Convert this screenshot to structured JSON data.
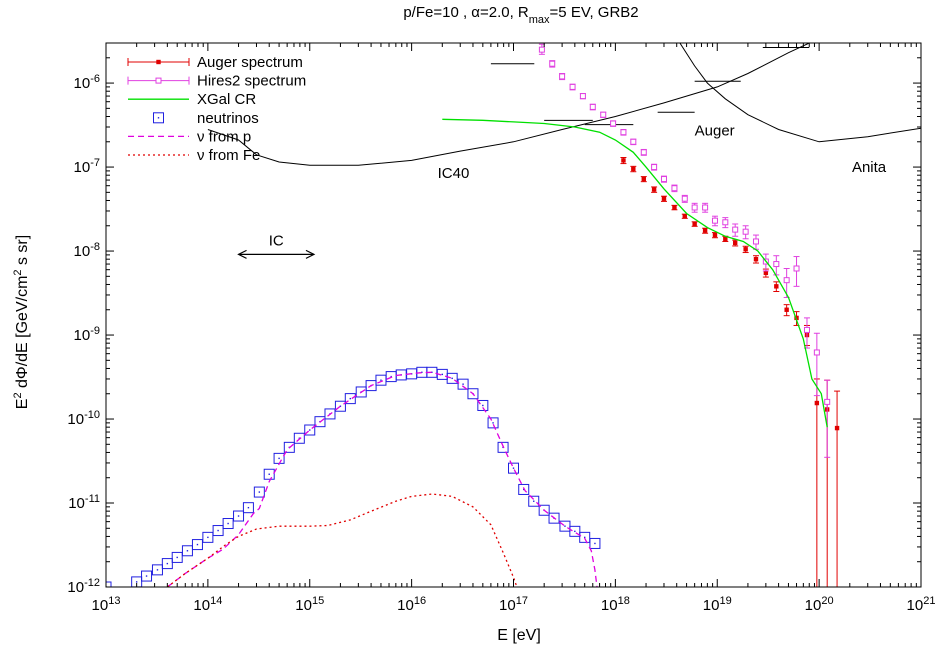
{
  "chart_data": {
    "type": "scatter",
    "title": "p/Fe=10 , α=2.0, R",
    "title_sub": "max",
    "title_tail": "=5 EV, GRB2",
    "xlabel": "E [eV]",
    "ylabel_pre": "E",
    "ylabel_sup": "2",
    "ylabel_mid": " dΦ/dE [GeV/cm",
    "ylabel_sup2": "2",
    "ylabel_post": " s sr]",
    "x_scale": "log",
    "y_scale": "log",
    "xlim": [
      10000000000000.0,
      1e+21
    ],
    "ylim": [
      1e-12,
      3e-06
    ],
    "grid": false,
    "legend_position": "top-left",
    "x_ticks": [
      {
        "base": "10",
        "exp": "13",
        "value": 10000000000000.0
      },
      {
        "base": "10",
        "exp": "14",
        "value": 100000000000000.0
      },
      {
        "base": "10",
        "exp": "15",
        "value": 1000000000000000.0
      },
      {
        "base": "10",
        "exp": "16",
        "value": 1e+16
      },
      {
        "base": "10",
        "exp": "17",
        "value": 1e+17
      },
      {
        "base": "10",
        "exp": "18",
        "value": 1e+18
      },
      {
        "base": "10",
        "exp": "19",
        "value": 1e+19
      },
      {
        "base": "10",
        "exp": "20",
        "value": 1e+20
      },
      {
        "base": "10",
        "exp": "21",
        "value": 1e+21
      }
    ],
    "y_ticks": [
      {
        "base": "10",
        "exp": "-12",
        "value": 1e-12
      },
      {
        "base": "10",
        "exp": "-11",
        "value": 1e-11
      },
      {
        "base": "10",
        "exp": "-10",
        "value": 1e-10
      },
      {
        "base": "10",
        "exp": "-9",
        "value": 1e-09
      },
      {
        "base": "10",
        "exp": "-8",
        "value": 1e-08
      },
      {
        "base": "10",
        "exp": "-7",
        "value": 1e-07
      },
      {
        "base": "10",
        "exp": "-6",
        "value": 1e-06
      }
    ],
    "series": [
      {
        "name": "Auger spectrum",
        "kind": "errorbar-points",
        "color": "#e00000",
        "points": [
          [
            1.2e+18,
            1.2e-07,
            1.1e-07,
            1.3e-07
          ],
          [
            1.5e+18,
            9.5e-08,
            8.8e-08,
            1.02e-07
          ],
          [
            1.9e+18,
            7.2e-08,
            6.7e-08,
            7.7e-08
          ],
          [
            2.4e+18,
            5.4e-08,
            5e-08,
            5.8e-08
          ],
          [
            3e+18,
            4.2e-08,
            3.9e-08,
            4.5e-08
          ],
          [
            3.8e+18,
            3.3e-08,
            3.1e-08,
            3.5e-08
          ],
          [
            4.8e+18,
            2.6e-08,
            2.45e-08,
            2.75e-08
          ],
          [
            6e+18,
            2.1e-08,
            1.97e-08,
            2.23e-08
          ],
          [
            7.6e+18,
            1.75e-08,
            1.63e-08,
            1.87e-08
          ],
          [
            9.5e+18,
            1.55e-08,
            1.44e-08,
            1.66e-08
          ],
          [
            1.2e+19,
            1.4e-08,
            1.3e-08,
            1.5e-08
          ],
          [
            1.5e+19,
            1.25e-08,
            1.15e-08,
            1.35e-08
          ],
          [
            1.9e+19,
            1.05e-08,
            9.6e-09,
            1.14e-08
          ],
          [
            2.4e+19,
            8e-09,
            7.2e-09,
            8.8e-09
          ],
          [
            3e+19,
            5.5e-09,
            4.9e-09,
            6.1e-09
          ],
          [
            3.8e+19,
            3.8e-09,
            3.3e-09,
            4.3e-09
          ],
          [
            4.8e+19,
            2e-09,
            1.7e-09,
            2.3e-09
          ],
          [
            6e+19,
            1.6e-09,
            1.3e-09,
            1.9e-09
          ],
          [
            7.6e+19,
            1e-09,
            7.5e-10,
            1.3e-09
          ],
          [
            9.5e+19,
            1.55e-10,
            1e-12,
            3e-10
          ],
          [
            1.2e+20,
            1.3e-10,
            1e-12,
            2.9e-10
          ],
          [
            1.5e+20,
            7.8e-11,
            1e-12,
            2.15e-10
          ]
        ]
      },
      {
        "name": "Hires2 spectrum",
        "kind": "errorbar-points",
        "color": "#e040e0",
        "points": [
          [
            1.9e+17,
            2.5e-06,
            2.2e-06,
            2.9e-06
          ],
          [
            2.4e+17,
            1.7e-06,
            1.55e-06,
            1.85e-06
          ],
          [
            3e+17,
            1.2e-06,
            1.1e-06,
            1.3e-06
          ],
          [
            3.8e+17,
            9e-07,
            8.3e-07,
            9.7e-07
          ],
          [
            4.8e+17,
            7e-07,
            6.5e-07,
            7.5e-07
          ],
          [
            6e+17,
            5.2e-07,
            4.8e-07,
            5.6e-07
          ],
          [
            7.6e+17,
            4.2e-07,
            3.9e-07,
            4.5e-07
          ],
          [
            9.5e+17,
            3.3e-07,
            3.05e-07,
            3.55e-07
          ],
          [
            1.2e+18,
            2.6e-07,
            2.4e-07,
            2.8e-07
          ],
          [
            1.5e+18,
            2e-07,
            1.85e-07,
            2.15e-07
          ],
          [
            1.9e+18,
            1.5e-07,
            1.38e-07,
            1.62e-07
          ],
          [
            2.4e+18,
            1e-07,
            9.2e-08,
            1.08e-07
          ],
          [
            3e+18,
            7.2e-08,
            6.6e-08,
            7.8e-08
          ],
          [
            3.8e+18,
            5.6e-08,
            5.1e-08,
            6.1e-08
          ],
          [
            4.8e+18,
            4.2e-08,
            3.8e-08,
            4.6e-08
          ],
          [
            6e+18,
            3.3e-08,
            2.9e-08,
            3.7e-08
          ],
          [
            7.6e+18,
            3.3e-08,
            2.9e-08,
            3.7e-08
          ],
          [
            9.5e+18,
            2.3e-08,
            2e-08,
            2.6e-08
          ],
          [
            1.2e+19,
            2.2e-08,
            1.9e-08,
            2.5e-08
          ],
          [
            1.5e+19,
            1.8e-08,
            1.5e-08,
            2.1e-08
          ],
          [
            1.9e+19,
            1.7e-08,
            1.4e-08,
            2e-08
          ],
          [
            2.4e+19,
            1.3e-08,
            1.05e-08,
            1.55e-08
          ],
          [
            3e+19,
            7.5e-09,
            5.8e-09,
            9.2e-09
          ],
          [
            3.8e+19,
            7e-09,
            5.2e-09,
            8.8e-09
          ],
          [
            4.8e+19,
            4.5e-09,
            2.8e-09,
            6.2e-09
          ],
          [
            6e+19,
            6.2e-09,
            3.8e-09,
            8.6e-09
          ],
          [
            7.6e+19,
            1.15e-09,
            7e-10,
            1.6e-09
          ],
          [
            9.5e+19,
            6.2e-10,
            1.9e-10,
            1.05e-09
          ],
          [
            1.2e+20,
            1.6e-10,
            3.5e-11,
            2.9e-10
          ]
        ]
      },
      {
        "name": "XGal CR",
        "kind": "line",
        "color": "#00e000",
        "dash": "",
        "points": [
          [
            2e+16,
            3.7e-07
          ],
          [
            5e+16,
            3.6e-07
          ],
          [
            1e+17,
            3.45e-07
          ],
          [
            2e+17,
            3.3e-07
          ],
          [
            4e+17,
            3e-07
          ],
          [
            7e+17,
            2.6e-07
          ],
          [
            1e+18,
            2.1e-07
          ],
          [
            1.5e+18,
            1.5e-07
          ],
          [
            2e+18,
            1e-07
          ],
          [
            3e+18,
            5.5e-08
          ],
          [
            5e+18,
            2.8e-08
          ],
          [
            8e+18,
            1.9e-08
          ],
          [
            1.2e+19,
            1.5e-08
          ],
          [
            1.8e+19,
            1.3e-08
          ],
          [
            2.5e+19,
            1e-08
          ],
          [
            3.5e+19,
            6e-09
          ],
          [
            5e+19,
            2.8e-09
          ],
          [
            7e+19,
            9e-10
          ],
          [
            8.5e+19,
            3e-10
          ],
          [
            1.05e+20,
            2e-10
          ],
          [
            1.2e+20,
            8e-11
          ]
        ]
      },
      {
        "name": "neutrinos",
        "kind": "squares",
        "color": "#2020e0",
        "points": [
          [
            10000000000000.0,
            1e-12
          ],
          [
            16000000000000.0,
            7e-13
          ],
          [
            20000000000000.0,
            1.15e-12
          ],
          [
            25000000000000.0,
            1.35e-12
          ],
          [
            32000000000000.0,
            1.6e-12
          ],
          [
            40000000000000.0,
            1.9e-12
          ],
          [
            50000000000000.0,
            2.25e-12
          ],
          [
            63000000000000.0,
            2.7e-12
          ],
          [
            79000000000000.0,
            3.2e-12
          ],
          [
            100000000000000.0,
            3.9e-12
          ],
          [
            126000000000000.0,
            4.7e-12
          ],
          [
            158000000000000.0,
            5.7e-12
          ],
          [
            200000000000000.0,
            7e-12
          ],
          [
            250000000000000.0,
            8.8e-12
          ],
          [
            320000000000000.0,
            1.35e-11
          ],
          [
            400000000000000.0,
            2.2e-11
          ],
          [
            500000000000000.0,
            3.4e-11
          ],
          [
            630000000000000.0,
            4.6e-11
          ],
          [
            790000000000000.0,
            5.9e-11
          ],
          [
            1000000000000000.0,
            7.4e-11
          ],
          [
            1260000000000000.0,
            9.3e-11
          ],
          [
            1580000000000000.0,
            1.15e-10
          ],
          [
            2000000000000000.0,
            1.42e-10
          ],
          [
            2500000000000000.0,
            1.75e-10
          ],
          [
            3200000000000000.0,
            2.1e-10
          ],
          [
            4000000000000000.0,
            2.5e-10
          ],
          [
            5000000000000000.0,
            2.9e-10
          ],
          [
            6300000000000000.0,
            3.2e-10
          ],
          [
            7900000000000000.0,
            3.35e-10
          ],
          [
            1e+16,
            3.45e-10
          ],
          [
            1.26e+16,
            3.6e-10
          ],
          [
            1.58e+16,
            3.6e-10
          ],
          [
            2e+16,
            3.4e-10
          ],
          [
            2.5e+16,
            3.05e-10
          ],
          [
            3.2e+16,
            2.6e-10
          ],
          [
            4e+16,
            2e-10
          ],
          [
            5e+16,
            1.45e-10
          ],
          [
            6.3e+16,
            9e-11
          ],
          [
            7.9e+16,
            4.6e-11
          ],
          [
            1e+17,
            2.6e-11
          ],
          [
            1.26e+17,
            1.45e-11
          ],
          [
            1.58e+17,
            1.05e-11
          ],
          [
            2e+17,
            8.2e-12
          ],
          [
            2.5e+17,
            6.6e-12
          ],
          [
            3.2e+17,
            5.3e-12
          ],
          [
            4e+17,
            4.6e-12
          ],
          [
            5e+17,
            3.9e-12
          ],
          [
            6.3e+17,
            3.3e-12
          ]
        ]
      },
      {
        "name": "ν from p",
        "kind": "line",
        "color": "#e000e0",
        "dash": "6,4",
        "points": [
          [
            40000000000000.0,
            1e-12
          ],
          [
            60000000000000.0,
            1.45e-12
          ],
          [
            100000000000000.0,
            2.2e-12
          ],
          [
            140000000000000.0,
            2.8e-12
          ],
          [
            200000000000000.0,
            4.2e-12
          ],
          [
            280000000000000.0,
            7.5e-12
          ],
          [
            320000000000000.0,
            8.6e-12
          ],
          [
            400000000000000.0,
            1.8e-11
          ],
          [
            600000000000000.0,
            4.3e-11
          ],
          [
            1000000000000000.0,
            7.4e-11
          ],
          [
            2000000000000000.0,
            1.42e-10
          ],
          [
            4000000000000000.0,
            2.5e-10
          ],
          [
            7000000000000000.0,
            3.3e-10
          ],
          [
            1.2e+16,
            3.55e-10
          ],
          [
            1.6e+16,
            3.6e-10
          ],
          [
            2.5e+16,
            3.05e-10
          ],
          [
            4e+16,
            2e-10
          ],
          [
            6e+16,
            1e-10
          ],
          [
            8e+16,
            4.6e-11
          ],
          [
            1e+17,
            2.6e-11
          ],
          [
            1.3e+17,
            1.4e-11
          ],
          [
            2e+17,
            8.2e-12
          ],
          [
            3.2e+17,
            5.3e-12
          ],
          [
            5e+17,
            3.8e-12
          ],
          [
            5.8e+17,
            2.7e-12
          ],
          [
            6.3e+17,
            1.6e-12
          ],
          [
            6.6e+17,
            1e-12
          ]
        ]
      },
      {
        "name": "ν from Fe",
        "kind": "line",
        "color": "#e00000",
        "dash": "2,3",
        "points": [
          [
            40000000000000.0,
            1e-12
          ],
          [
            60000000000000.0,
            1.45e-12
          ],
          [
            100000000000000.0,
            2.2e-12
          ],
          [
            150000000000000.0,
            3.2e-12
          ],
          [
            200000000000000.0,
            4e-12
          ],
          [
            300000000000000.0,
            4.9e-12
          ],
          [
            500000000000000.0,
            5.3e-12
          ],
          [
            1000000000000000.0,
            5.3e-12
          ],
          [
            1500000000000000.0,
            5.4e-12
          ],
          [
            2500000000000000.0,
            6.3e-12
          ],
          [
            4000000000000000.0,
            8e-12
          ],
          [
            7000000000000000.0,
            1.05e-11
          ],
          [
            1e+16,
            1.2e-11
          ],
          [
            1.6e+16,
            1.28e-11
          ],
          [
            2.5e+16,
            1.2e-11
          ],
          [
            4e+16,
            9e-12
          ],
          [
            6e+16,
            5.5e-12
          ],
          [
            8e+16,
            2.5e-12
          ],
          [
            1e+17,
            1.3e-12
          ],
          [
            1.08e+17,
            1e-12
          ]
        ]
      }
    ],
    "reference_curves": [
      {
        "label": "IC40",
        "label_at": [
          1.8e+16,
          8.5e-08
        ],
        "points": [
          [
            100000000000000.0,
            2.8e-07
          ],
          [
            200000000000000.0,
            2.1e-07
          ],
          [
            300000000000000.0,
            1.4e-07
          ],
          [
            500000000000000.0,
            1.15e-07
          ],
          [
            1000000000000000.0,
            1.05e-07
          ],
          [
            3000000000000000.0,
            1.05e-07
          ],
          [
            1e+16,
            1.2e-07
          ],
          [
            3e+16,
            1.55e-07
          ],
          [
            1e+17,
            2e-07
          ],
          [
            3e+17,
            2.8e-07
          ],
          [
            1e+18,
            4e-07
          ],
          [
            3e+18,
            5.8e-07
          ],
          [
            1e+19,
            9e-07
          ],
          [
            2e+19,
            1.3e-06
          ],
          [
            5e+19,
            2.3e-06
          ],
          [
            8e+19,
            3e-06
          ]
        ]
      },
      {
        "label": "Anita",
        "label_at": [
          2.1e+20,
          1e-07
        ],
        "points": [
          [
            4.3e+18,
            3e-06
          ],
          [
            6e+18,
            1.6e-06
          ],
          [
            8e+18,
            1e-06
          ],
          [
            1.2e+19,
            6.5e-07
          ],
          [
            2e+19,
            4.2e-07
          ],
          [
            4e+19,
            2.8e-07
          ],
          [
            1e+20,
            2e-07
          ],
          [
            3e+20,
            2.3e-07
          ],
          [
            1e+21,
            2.9e-07
          ]
        ]
      }
    ],
    "limit_segments": [
      [
        [
          6e+16,
          1.7e-06
        ],
        [
          1.6e+17,
          1.7e-06
        ]
      ],
      [
        [
          2e+17,
          3.6e-07
        ],
        [
          6e+17,
          3.6e-07
        ]
      ],
      [
        [
          5e+17,
          3.2e-07
        ],
        [
          1.5e+18,
          3.2e-07
        ]
      ],
      [
        [
          2.6e+18,
          4.5e-07
        ],
        [
          6e+18,
          4.5e-07
        ]
      ],
      [
        [
          6e+18,
          1.05e-06
        ],
        [
          1.7e+19,
          1.05e-06
        ]
      ],
      [
        [
          2.8e+19,
          2.65e-06
        ],
        [
          8e+19,
          2.65e-06
        ]
      ]
    ],
    "annotations": {
      "auger_label": "Auger",
      "auger_at": [
        6e+18,
        3.3e-07
      ],
      "ic_label": "IC",
      "ic_arrow": [
        200000000000000.0,
        1100000000000000.0,
        1.2e-08
      ]
    }
  }
}
